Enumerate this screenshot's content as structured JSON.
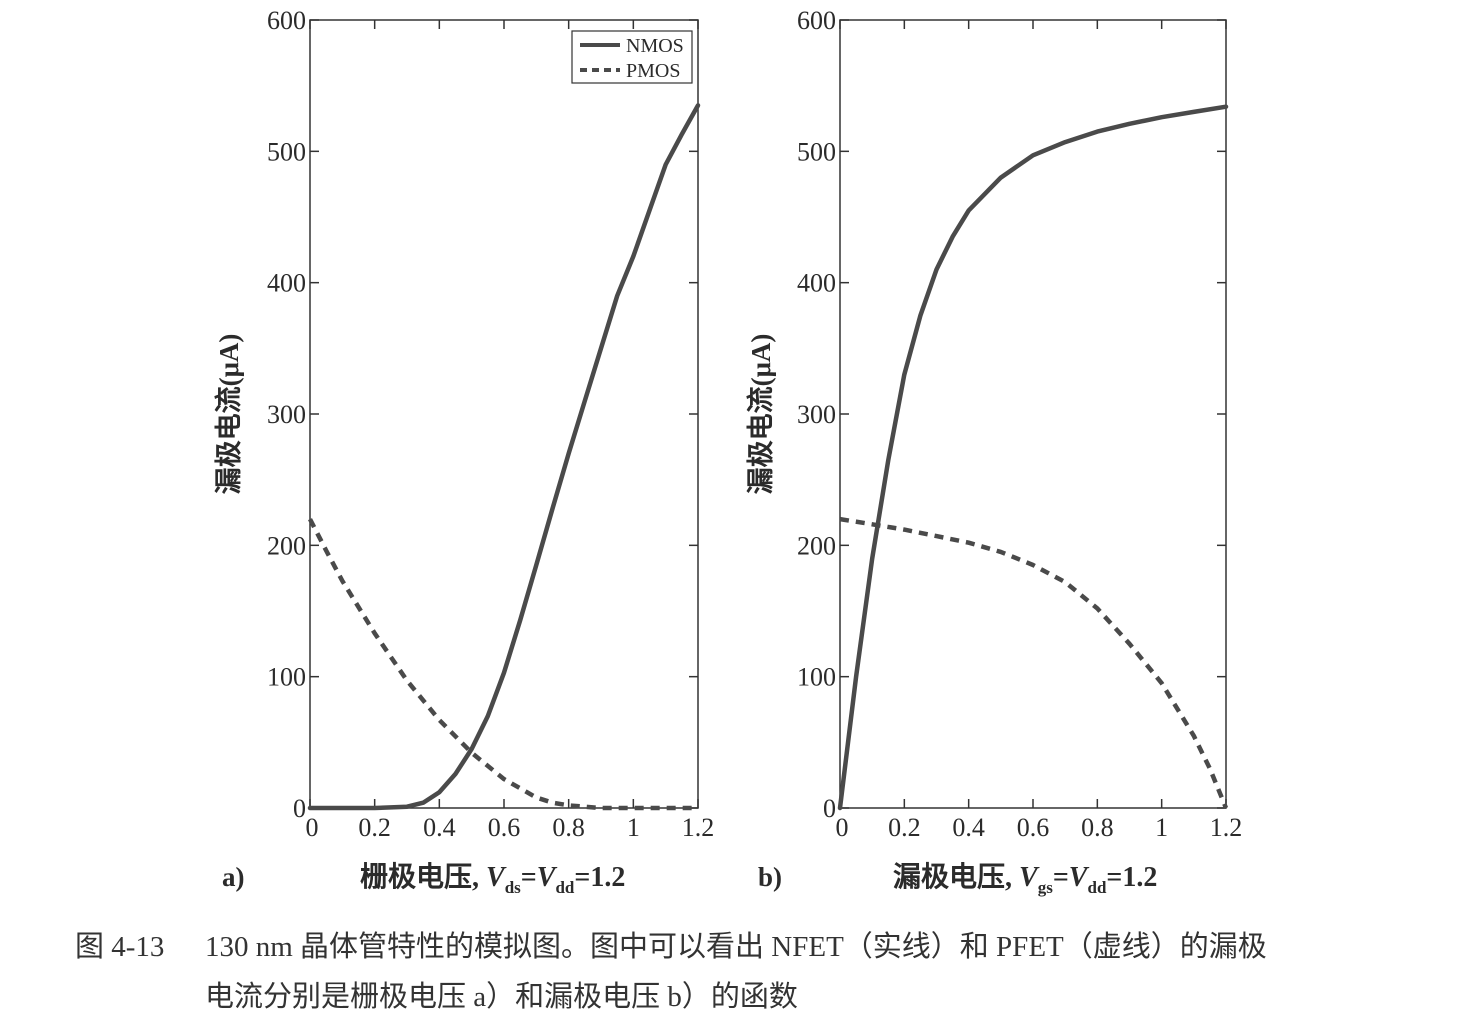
{
  "colors": {
    "line": "#4a4a4a",
    "axis": "#333333",
    "text": "#2b2b2b"
  },
  "caption": {
    "number": "图 4-13",
    "line1": "130 nm 晶体管特性的模拟图。图中可以看出 NFET（实线）和 PFET（虚线）的漏极",
    "line2": "电流分别是栅极电压 a）和漏极电压 b）的函数"
  },
  "chart_data": [
    {
      "panel": "a)",
      "type": "line",
      "xlabel_main": "栅极电压,",
      "xlabel_eq": "V_ds=V_dd=1.2",
      "ylabel": "漏极电流(μA)",
      "xlim": [
        0,
        1.2
      ],
      "ylim": [
        0,
        600
      ],
      "xticks": [
        0,
        0.2,
        0.4,
        0.6,
        0.8,
        1,
        1.2
      ],
      "yticks": [
        0,
        100,
        200,
        300,
        400,
        500,
        600
      ],
      "legend": {
        "position": "top-right",
        "entries": [
          "NMOS",
          "PMOS"
        ]
      },
      "series": [
        {
          "name": "NMOS",
          "style": "solid",
          "x": [
            0,
            0.1,
            0.2,
            0.3,
            0.35,
            0.4,
            0.45,
            0.5,
            0.55,
            0.6,
            0.65,
            0.7,
            0.75,
            0.8,
            0.85,
            0.9,
            0.95,
            1.0,
            1.05,
            1.1,
            1.15,
            1.2
          ],
          "y": [
            0,
            0,
            0,
            1,
            4,
            12,
            26,
            45,
            70,
            103,
            143,
            185,
            228,
            270,
            310,
            350,
            390,
            420,
            455,
            490,
            513,
            535
          ]
        },
        {
          "name": "PMOS",
          "style": "dashed",
          "x": [
            0,
            0.05,
            0.1,
            0.2,
            0.3,
            0.4,
            0.5,
            0.6,
            0.7,
            0.75,
            0.8,
            0.85,
            0.9,
            1.0,
            1.1,
            1.2
          ],
          "y": [
            220,
            196,
            173,
            133,
            97,
            67,
            42,
            22,
            8,
            4,
            2,
            1,
            0,
            0,
            0,
            0
          ]
        }
      ]
    },
    {
      "panel": "b)",
      "type": "line",
      "xlabel_main": "漏极电压,",
      "xlabel_eq": "V_gs=V_dd=1.2",
      "ylabel": "漏极电流(μA)",
      "xlim": [
        0,
        1.2
      ],
      "ylim": [
        0,
        600
      ],
      "xticks": [
        0,
        0.2,
        0.4,
        0.6,
        0.8,
        1,
        1.2
      ],
      "yticks": [
        0,
        100,
        200,
        300,
        400,
        500,
        600
      ],
      "series": [
        {
          "name": "NMOS",
          "style": "solid",
          "x": [
            0,
            0.05,
            0.1,
            0.15,
            0.2,
            0.25,
            0.3,
            0.35,
            0.4,
            0.5,
            0.6,
            0.7,
            0.8,
            0.9,
            1.0,
            1.1,
            1.2
          ],
          "y": [
            0,
            100,
            190,
            265,
            330,
            375,
            410,
            435,
            455,
            480,
            497,
            507,
            515,
            521,
            526,
            530,
            534
          ]
        },
        {
          "name": "PMOS",
          "style": "dashed",
          "x": [
            0,
            0.1,
            0.2,
            0.3,
            0.4,
            0.5,
            0.6,
            0.7,
            0.8,
            0.9,
            1.0,
            1.1,
            1.15,
            1.2
          ],
          "y": [
            220,
            216,
            212,
            207,
            202,
            195,
            185,
            172,
            152,
            125,
            95,
            55,
            30,
            0
          ]
        }
      ]
    }
  ]
}
